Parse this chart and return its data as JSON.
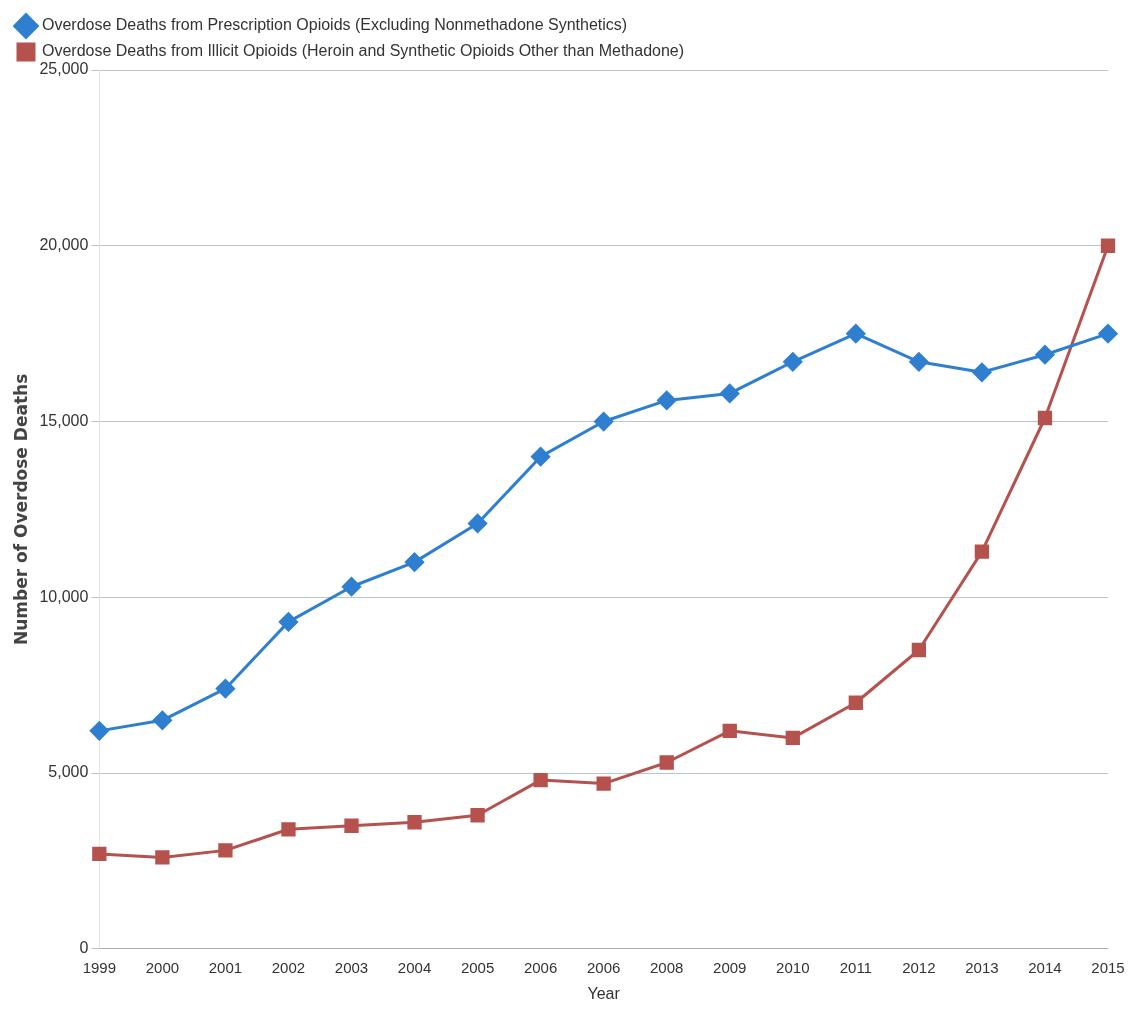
{
  "chart_data": {
    "type": "line",
    "xlabel": "Year",
    "ylabel": "Number of Overdose Deaths",
    "categories": [
      "1999",
      "2000",
      "2001",
      "2002",
      "2003",
      "2004",
      "2005",
      "2006",
      "2006",
      "2008",
      "2009",
      "2010",
      "2011",
      "2012",
      "2013",
      "2014",
      "2015"
    ],
    "series": [
      {
        "name": "Overdose Deaths from Prescription Opioids (Excluding Nonmethadone Synthetics)",
        "color": "#2f7fd0",
        "marker": "diamond",
        "values": [
          6200,
          6500,
          7400,
          9300,
          10300,
          11000,
          12100,
          14000,
          15000,
          15600,
          15800,
          16700,
          17500,
          16700,
          16400,
          16900,
          17500
        ]
      },
      {
        "name": "Overdose Deaths from Illicit Opioids (Heroin and Synthetic Opioids Other than Methadone)",
        "color": "#b5524e",
        "marker": "square",
        "values": [
          2700,
          2600,
          2800,
          3400,
          3500,
          3600,
          3800,
          4800,
          4700,
          5300,
          6200,
          6000,
          7000,
          8500,
          11300,
          15100,
          20000
        ]
      }
    ],
    "ylim": [
      0,
      25000
    ],
    "yticks": [
      {
        "value": 0,
        "label": "0"
      },
      {
        "value": 5000,
        "label": "5,000"
      },
      {
        "value": 10000,
        "label": "10,000"
      },
      {
        "value": 15000,
        "label": "15,000"
      },
      {
        "value": 20000,
        "label": "20,000"
      },
      {
        "value": 25000,
        "label": "25,000"
      }
    ],
    "grid": "y",
    "legend": "top left",
    "line_style": "solid"
  }
}
